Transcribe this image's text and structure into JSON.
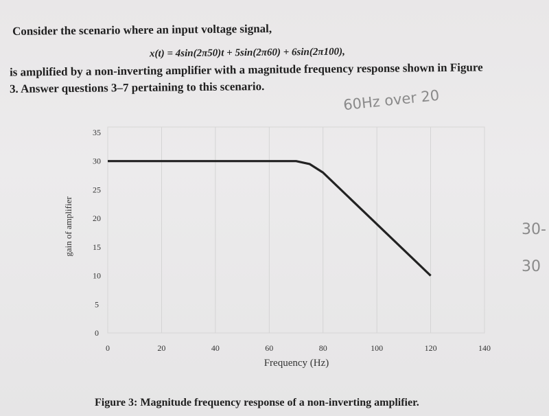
{
  "question": {
    "line1": "Consider the scenario where an input voltage signal,",
    "equation": "x(t) = 4sin(2π50)t + 5sin(2π60) + 6sin(2π100),",
    "line2": "is amplified by a non-inverting amplifier with a magnitude frequency response shown in Figure",
    "line3": "3. Answer questions 3–7 pertaining to this scenario."
  },
  "handwriting": {
    "note1": "60Hz over 20",
    "note2": "30-",
    "note3": "30"
  },
  "caption": "Figure 3: Magnitude frequency response of a non-inverting amplifier.",
  "colors": {
    "curve": "#222222",
    "grid": "#cfcfcf",
    "axis": "#888888"
  },
  "chart_data": {
    "type": "line",
    "title": "",
    "xlabel": "Frequency (Hz)",
    "ylabel": "gain of amplifier",
    "xlim": [
      0,
      140
    ],
    "ylim": [
      0,
      35
    ],
    "xticks": [
      0,
      20,
      40,
      60,
      80,
      100,
      120,
      140
    ],
    "yticks": [
      0,
      5,
      10,
      15,
      20,
      25,
      30,
      35
    ],
    "grid": true,
    "series": [
      {
        "x": [
          0,
          65,
          70,
          75,
          80,
          120
        ],
        "y": [
          30,
          30,
          30,
          29.5,
          28,
          10
        ]
      }
    ]
  }
}
